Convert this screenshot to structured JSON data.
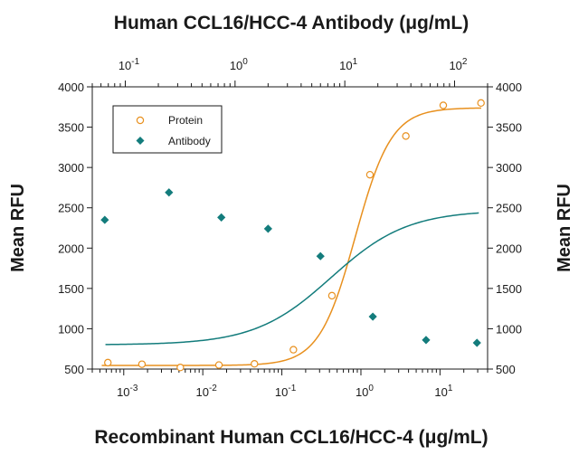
{
  "chart_data": {
    "type": "scatter",
    "title": "Human CCL16/HCC-4 Antibody (μg/mL)",
    "xlabel": "Recombinant Human CCL16/HCC-4 (μg/mL)",
    "ylabel": "Mean RFU",
    "ylabel_right": "Mean RFU",
    "x_scale": "log",
    "x_top_scale": "log",
    "xlim_bottom": [
      0.0004,
      40
    ],
    "xlim_top": [
      0.05,
      200
    ],
    "ylim": [
      500,
      4000
    ],
    "y_ticks": [
      500,
      1000,
      1500,
      2000,
      2500,
      3000,
      3500,
      4000
    ],
    "x_bottom_ticks": [
      {
        "value": 0.001,
        "label": "10",
        "exp": "-3"
      },
      {
        "value": 0.01,
        "label": "10",
        "exp": "-2"
      },
      {
        "value": 0.1,
        "label": "10",
        "exp": "-1"
      },
      {
        "value": 1,
        "label": "10",
        "exp": "0"
      },
      {
        "value": 10,
        "label": "10",
        "exp": "1"
      }
    ],
    "x_top_ticks": [
      {
        "value": 0.1,
        "label": "10",
        "exp": "-1"
      },
      {
        "value": 1,
        "label": "10",
        "exp": "0"
      },
      {
        "value": 10,
        "label": "10",
        "exp": "1"
      },
      {
        "value": 100,
        "label": "10",
        "exp": "2"
      }
    ],
    "legend_position": "top-left",
    "grid": false,
    "series": [
      {
        "name": "Protein",
        "axis": "bottom",
        "marker": "open-circle",
        "color": "#E8901E",
        "x": [
          0.00063,
          0.0017,
          0.0052,
          0.016,
          0.045,
          0.14,
          0.43,
          1.3,
          3.7,
          11,
          33
        ],
        "y": [
          580,
          560,
          520,
          550,
          565,
          740,
          1410,
          2910,
          3390,
          3770,
          3800
        ],
        "fit": {
          "bottom": 545,
          "top": 3740,
          "ec50": 0.85,
          "hill": 1.9
        }
      },
      {
        "name": "Antibody",
        "axis": "top",
        "marker": "filled-diamond",
        "color": "#137C7C",
        "x": [
          0.065,
          0.25,
          0.75,
          2.0,
          6.0,
          18,
          55,
          160
        ],
        "y": [
          2350,
          2690,
          2380,
          2240,
          1900,
          1150,
          860,
          825
        ],
        "fit": {
          "bottom": 800,
          "top": 2470,
          "ec50": 7.5,
          "hill": 1.25
        }
      }
    ]
  }
}
